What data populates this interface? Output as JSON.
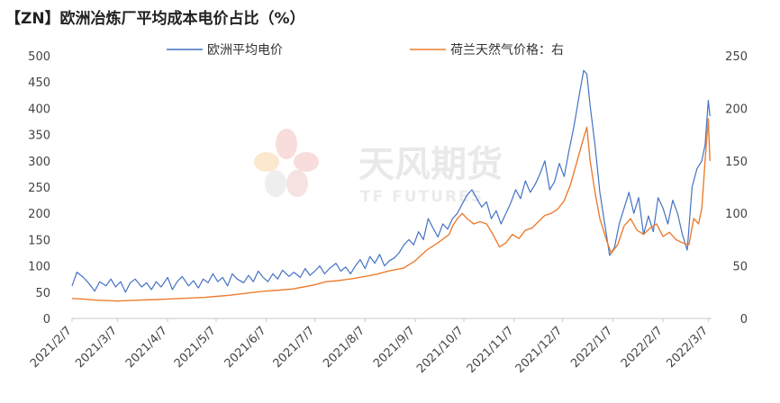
{
  "chart_data": {
    "type": "line",
    "title": "【ZN】欧洲冶炼厂平均成本电价占比（%）",
    "xlabel": "",
    "ylabel": "",
    "x_ticks": [
      "2021/2/7",
      "2021/3/7",
      "2021/4/7",
      "2021/5/7",
      "2021/6/7",
      "2021/7/7",
      "2021/8/7",
      "2021/9/7",
      "2021/10/7",
      "2021/11/7",
      "2021/12/7",
      "2022/1/7",
      "2022/2/7",
      "2022/3/7"
    ],
    "y_left": {
      "lim": [
        0,
        500
      ],
      "ticks": [
        "0",
        "50",
        "100",
        "150",
        "200",
        "250",
        "300",
        "350",
        "400",
        "450",
        "500"
      ]
    },
    "y_right": {
      "lim": [
        0,
        250
      ],
      "ticks": [
        "0",
        "50",
        "100",
        "150",
        "200",
        "250"
      ]
    },
    "grid": false,
    "legend_position": "top",
    "series": [
      {
        "name": "欧洲平均电价",
        "axis": "left",
        "color": "#4472c4",
        "points": [
          [
            "2021-02-07",
            62
          ],
          [
            "2021-02-10",
            88
          ],
          [
            "2021-02-14",
            78
          ],
          [
            "2021-02-17",
            68
          ],
          [
            "2021-02-21",
            52
          ],
          [
            "2021-02-24",
            70
          ],
          [
            "2021-02-28",
            62
          ],
          [
            "2021-03-03",
            75
          ],
          [
            "2021-03-06",
            60
          ],
          [
            "2021-03-09",
            70
          ],
          [
            "2021-03-12",
            50
          ],
          [
            "2021-03-15",
            68
          ],
          [
            "2021-03-18",
            75
          ],
          [
            "2021-03-22",
            60
          ],
          [
            "2021-03-25",
            68
          ],
          [
            "2021-03-28",
            55
          ],
          [
            "2021-03-31",
            70
          ],
          [
            "2021-04-03",
            60
          ],
          [
            "2021-04-07",
            78
          ],
          [
            "2021-04-10",
            55
          ],
          [
            "2021-04-13",
            70
          ],
          [
            "2021-04-16",
            80
          ],
          [
            "2021-04-20",
            62
          ],
          [
            "2021-04-23",
            72
          ],
          [
            "2021-04-26",
            58
          ],
          [
            "2021-04-29",
            75
          ],
          [
            "2021-05-02",
            68
          ],
          [
            "2021-05-05",
            85
          ],
          [
            "2021-05-08",
            70
          ],
          [
            "2021-05-11",
            78
          ],
          [
            "2021-05-14",
            62
          ],
          [
            "2021-05-17",
            85
          ],
          [
            "2021-05-20",
            75
          ],
          [
            "2021-05-24",
            68
          ],
          [
            "2021-05-27",
            82
          ],
          [
            "2021-05-30",
            70
          ],
          [
            "2021-06-02",
            90
          ],
          [
            "2021-06-05",
            78
          ],
          [
            "2021-06-08",
            70
          ],
          [
            "2021-06-11",
            85
          ],
          [
            "2021-06-14",
            75
          ],
          [
            "2021-06-17",
            92
          ],
          [
            "2021-06-21",
            80
          ],
          [
            "2021-06-24",
            88
          ],
          [
            "2021-06-28",
            78
          ],
          [
            "2021-07-01",
            95
          ],
          [
            "2021-07-04",
            82
          ],
          [
            "2021-07-07",
            90
          ],
          [
            "2021-07-10",
            100
          ],
          [
            "2021-07-13",
            85
          ],
          [
            "2021-07-16",
            95
          ],
          [
            "2021-07-20",
            105
          ],
          [
            "2021-07-23",
            90
          ],
          [
            "2021-07-26",
            98
          ],
          [
            "2021-07-29",
            85
          ],
          [
            "2021-08-01",
            100
          ],
          [
            "2021-08-04",
            112
          ],
          [
            "2021-08-07",
            95
          ],
          [
            "2021-08-10",
            118
          ],
          [
            "2021-08-13",
            105
          ],
          [
            "2021-08-16",
            122
          ],
          [
            "2021-08-19",
            100
          ],
          [
            "2021-08-22",
            110
          ],
          [
            "2021-08-25",
            115
          ],
          [
            "2021-08-28",
            125
          ],
          [
            "2021-08-31",
            140
          ],
          [
            "2021-09-03",
            150
          ],
          [
            "2021-09-06",
            140
          ],
          [
            "2021-09-09",
            165
          ],
          [
            "2021-09-12",
            150
          ],
          [
            "2021-09-15",
            190
          ],
          [
            "2021-09-18",
            172
          ],
          [
            "2021-09-21",
            155
          ],
          [
            "2021-09-24",
            180
          ],
          [
            "2021-09-27",
            170
          ],
          [
            "2021-09-30",
            190
          ],
          [
            "2021-10-03",
            200
          ],
          [
            "2021-10-06",
            218
          ],
          [
            "2021-10-09",
            235
          ],
          [
            "2021-10-12",
            245
          ],
          [
            "2021-10-15",
            228
          ],
          [
            "2021-10-18",
            212
          ],
          [
            "2021-10-21",
            222
          ],
          [
            "2021-10-24",
            190
          ],
          [
            "2021-10-27",
            205
          ],
          [
            "2021-10-30",
            180
          ],
          [
            "2021-11-02",
            200
          ],
          [
            "2021-11-05",
            220
          ],
          [
            "2021-11-08",
            245
          ],
          [
            "2021-11-11",
            228
          ],
          [
            "2021-11-14",
            262
          ],
          [
            "2021-11-17",
            240
          ],
          [
            "2021-11-20",
            255
          ],
          [
            "2021-11-23",
            275
          ],
          [
            "2021-11-26",
            300
          ],
          [
            "2021-11-29",
            245
          ],
          [
            "2021-12-02",
            260
          ],
          [
            "2021-12-05",
            295
          ],
          [
            "2021-12-08",
            270
          ],
          [
            "2021-12-11",
            320
          ],
          [
            "2021-12-14",
            365
          ],
          [
            "2021-12-17",
            420
          ],
          [
            "2021-12-20",
            472
          ],
          [
            "2021-12-22",
            465
          ],
          [
            "2021-12-24",
            405
          ],
          [
            "2021-12-27",
            330
          ],
          [
            "2021-12-30",
            240
          ],
          [
            "2022-01-02",
            180
          ],
          [
            "2022-01-05",
            120
          ],
          [
            "2022-01-08",
            135
          ],
          [
            "2022-01-11",
            180
          ],
          [
            "2022-01-14",
            210
          ],
          [
            "2022-01-17",
            240
          ],
          [
            "2022-01-20",
            200
          ],
          [
            "2022-01-23",
            230
          ],
          [
            "2022-01-26",
            160
          ],
          [
            "2022-01-29",
            195
          ],
          [
            "2022-02-01",
            165
          ],
          [
            "2022-02-04",
            230
          ],
          [
            "2022-02-07",
            210
          ],
          [
            "2022-02-10",
            180
          ],
          [
            "2022-02-13",
            225
          ],
          [
            "2022-02-16",
            200
          ],
          [
            "2022-02-19",
            160
          ],
          [
            "2022-02-22",
            130
          ],
          [
            "2022-02-25",
            250
          ],
          [
            "2022-02-28",
            285
          ],
          [
            "2022-03-03",
            300
          ],
          [
            "2022-03-05",
            330
          ],
          [
            "2022-03-07",
            415
          ],
          [
            "2022-03-08",
            385
          ]
        ]
      },
      {
        "name": "荷兰天然气价格：右",
        "axis": "right",
        "color": "#ed7d31",
        "points": [
          [
            "2021-02-07",
            19
          ],
          [
            "2021-02-14",
            18.5
          ],
          [
            "2021-02-21",
            17.5
          ],
          [
            "2021-02-28",
            17
          ],
          [
            "2021-03-07",
            16.5
          ],
          [
            "2021-03-14",
            17
          ],
          [
            "2021-03-21",
            17.5
          ],
          [
            "2021-03-31",
            18
          ],
          [
            "2021-04-07",
            18.5
          ],
          [
            "2021-04-15",
            19
          ],
          [
            "2021-04-23",
            19.5
          ],
          [
            "2021-04-30",
            20
          ],
          [
            "2021-05-07",
            21
          ],
          [
            "2021-05-15",
            22
          ],
          [
            "2021-05-23",
            23.5
          ],
          [
            "2021-05-31",
            25
          ],
          [
            "2021-06-07",
            26
          ],
          [
            "2021-06-15",
            27
          ],
          [
            "2021-06-23",
            28
          ],
          [
            "2021-06-30",
            30
          ],
          [
            "2021-07-07",
            32
          ],
          [
            "2021-07-14",
            35
          ],
          [
            "2021-07-21",
            36
          ],
          [
            "2021-07-31",
            38
          ],
          [
            "2021-08-07",
            40
          ],
          [
            "2021-08-14",
            42
          ],
          [
            "2021-08-21",
            45
          ],
          [
            "2021-08-31",
            48
          ],
          [
            "2021-09-07",
            55
          ],
          [
            "2021-09-14",
            65
          ],
          [
            "2021-09-21",
            72
          ],
          [
            "2021-09-28",
            80
          ],
          [
            "2021-09-30",
            88
          ],
          [
            "2021-10-03",
            95
          ],
          [
            "2021-10-06",
            100
          ],
          [
            "2021-10-09",
            95
          ],
          [
            "2021-10-13",
            90
          ],
          [
            "2021-10-17",
            92
          ],
          [
            "2021-10-21",
            90
          ],
          [
            "2021-10-25",
            80
          ],
          [
            "2021-10-29",
            68
          ],
          [
            "2021-11-02",
            72
          ],
          [
            "2021-11-06",
            80
          ],
          [
            "2021-11-10",
            76
          ],
          [
            "2021-11-14",
            84
          ],
          [
            "2021-11-18",
            86
          ],
          [
            "2021-11-22",
            92
          ],
          [
            "2021-11-26",
            98
          ],
          [
            "2021-11-30",
            100
          ],
          [
            "2021-12-04",
            104
          ],
          [
            "2021-12-08",
            112
          ],
          [
            "2021-12-12",
            128
          ],
          [
            "2021-12-16",
            150
          ],
          [
            "2021-12-20",
            172
          ],
          [
            "2021-12-22",
            182
          ],
          [
            "2021-12-24",
            150
          ],
          [
            "2021-12-27",
            120
          ],
          [
            "2021-12-30",
            95
          ],
          [
            "2022-01-03",
            75
          ],
          [
            "2022-01-06",
            62
          ],
          [
            "2022-01-10",
            70
          ],
          [
            "2022-01-14",
            88
          ],
          [
            "2022-01-18",
            95
          ],
          [
            "2022-01-22",
            84
          ],
          [
            "2022-01-26",
            80
          ],
          [
            "2022-01-30",
            86
          ],
          [
            "2022-02-03",
            90
          ],
          [
            "2022-02-07",
            78
          ],
          [
            "2022-02-11",
            82
          ],
          [
            "2022-02-15",
            75
          ],
          [
            "2022-02-19",
            72
          ],
          [
            "2022-02-23",
            70
          ],
          [
            "2022-02-26",
            95
          ],
          [
            "2022-03-01",
            90
          ],
          [
            "2022-03-03",
            105
          ],
          [
            "2022-03-05",
            150
          ],
          [
            "2022-03-07",
            190
          ],
          [
            "2022-03-08",
            150
          ]
        ]
      }
    ]
  },
  "watermark": {
    "name_cn": "天风期货",
    "name_en": "TF FUTURES",
    "colors": [
      "#f6c9c9",
      "#f8e0b8",
      "#e6e6e6"
    ]
  }
}
